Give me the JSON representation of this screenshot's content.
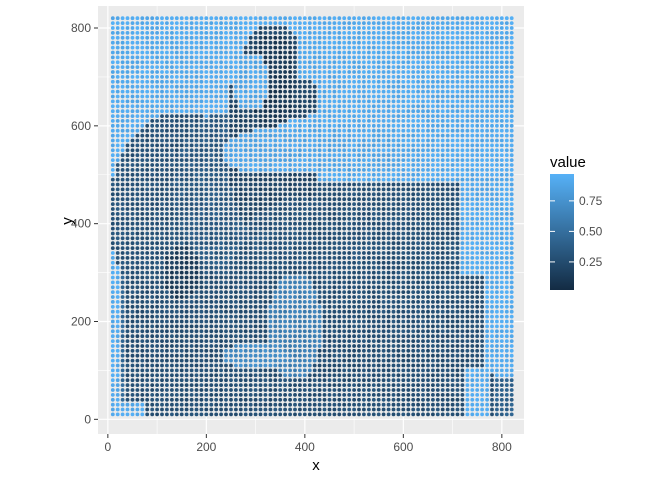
{
  "chart_data": {
    "type": "scatter",
    "description_note": "",
    "xlabel": "x",
    "ylabel": "y",
    "xlim": [
      -20,
      845
    ],
    "ylim": [
      -30,
      845
    ],
    "x_ticks": [
      0,
      200,
      400,
      600,
      800
    ],
    "y_ticks": [
      0,
      200,
      400,
      600,
      800
    ],
    "grid_step": 10,
    "grid_min": 10,
    "grid_max": 820,
    "legend": {
      "title": "value",
      "ticks": [
        0.25,
        0.5,
        0.75
      ],
      "tick_labels": [
        "0.25",
        "0.50",
        "0.75"
      ],
      "range": [
        0.02,
        0.97
      ],
      "low_color": "#132B43",
      "high_color": "#56B1F7",
      "placement": "right"
    },
    "panel_background": "#EBEBEB",
    "grid": true
  }
}
